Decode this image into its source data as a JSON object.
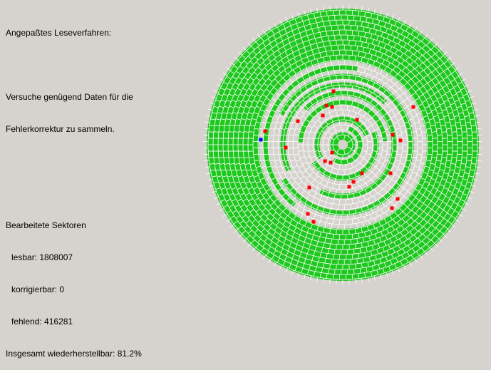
{
  "header": {
    "title": "Angepaßtes Leseverfahren:"
  },
  "status": {
    "line1": "Versuche genügend Daten für die",
    "line2": "Fehlerkorrektur zu sammeln."
  },
  "stats": {
    "heading": "Bearbeitete Sektoren",
    "readable_label": "lesbar:",
    "readable_value": "1808007",
    "correctable_label": "korrigierbar:",
    "correctable_value": "0",
    "missing_label": "fehlend:",
    "missing_value": "416281",
    "total_label": "Insgesamt wiederherstellbar:",
    "total_value": "81.2%"
  },
  "colors": {
    "background": "#d6d3ce",
    "sector_readable": "#1fc81f",
    "sector_missing": "#d6d3ce",
    "sector_border": "#ffffff",
    "sector_error": "#ff0000",
    "sector_current": "#0000ff"
  }
}
